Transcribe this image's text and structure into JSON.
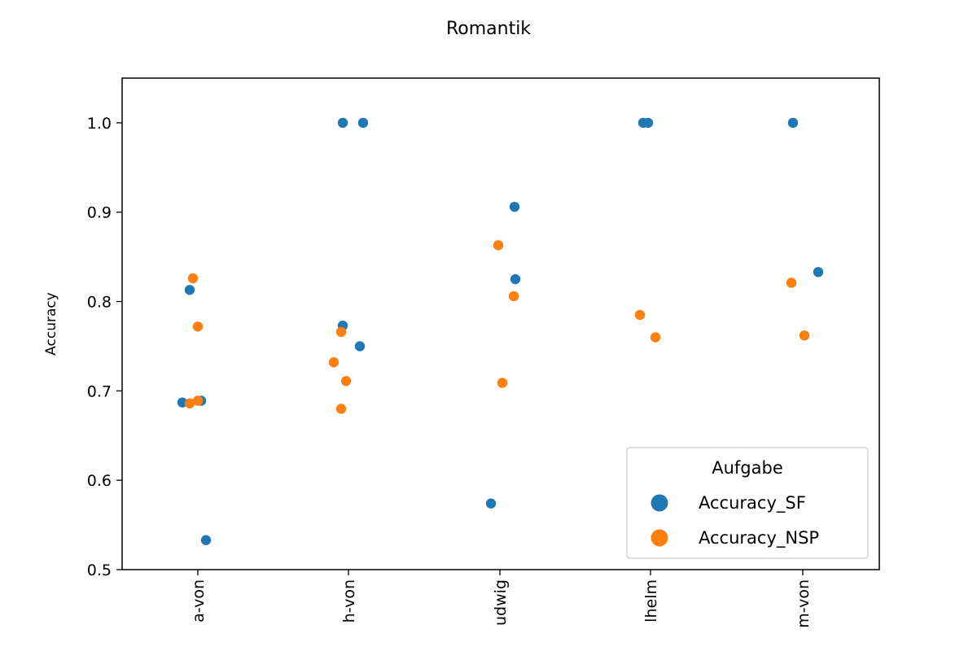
{
  "chart_data": {
    "type": "scatter",
    "title": "Romantik",
    "xlabel": "",
    "ylabel": "Accuracy",
    "ylim": [
      0.5,
      1.05
    ],
    "yticks": [
      "0.5",
      "0.6",
      "0.7",
      "0.8",
      "0.9",
      "1.0"
    ],
    "categories": [
      "a-von",
      "h-von",
      "udwig",
      "lhelm",
      "m-von"
    ],
    "grid": false,
    "legend": {
      "title": "Aufgabe",
      "placement": "lower-right"
    },
    "series": [
      {
        "name": "Accuracy_SF",
        "color": "#1f77b4",
        "points": [
          {
            "category": "a-von",
            "y": 0.813
          },
          {
            "category": "a-von",
            "y": 0.689
          },
          {
            "category": "a-von",
            "y": 0.687
          },
          {
            "category": "a-von",
            "y": 0.533
          },
          {
            "category": "h-von",
            "y": 1.0
          },
          {
            "category": "h-von",
            "y": 1.0
          },
          {
            "category": "h-von",
            "y": 0.773
          },
          {
            "category": "h-von",
            "y": 0.75
          },
          {
            "category": "udwig",
            "y": 0.906
          },
          {
            "category": "udwig",
            "y": 0.825
          },
          {
            "category": "udwig",
            "y": 0.574
          },
          {
            "category": "lhelm",
            "y": 1.0
          },
          {
            "category": "lhelm",
            "y": 1.0
          },
          {
            "category": "m-von",
            "y": 1.0
          },
          {
            "category": "m-von",
            "y": 0.833
          }
        ]
      },
      {
        "name": "Accuracy_NSP",
        "color": "#ff7f0e",
        "points": [
          {
            "category": "a-von",
            "y": 0.826
          },
          {
            "category": "a-von",
            "y": 0.772
          },
          {
            "category": "a-von",
            "y": 0.689
          },
          {
            "category": "a-von",
            "y": 0.686
          },
          {
            "category": "h-von",
            "y": 0.766
          },
          {
            "category": "h-von",
            "y": 0.732
          },
          {
            "category": "h-von",
            "y": 0.711
          },
          {
            "category": "h-von",
            "y": 0.68
          },
          {
            "category": "udwig",
            "y": 0.863
          },
          {
            "category": "udwig",
            "y": 0.806
          },
          {
            "category": "udwig",
            "y": 0.709
          },
          {
            "category": "lhelm",
            "y": 0.785
          },
          {
            "category": "lhelm",
            "y": 0.76
          },
          {
            "category": "m-von",
            "y": 0.821
          },
          {
            "category": "m-von",
            "y": 0.762
          }
        ]
      }
    ]
  }
}
